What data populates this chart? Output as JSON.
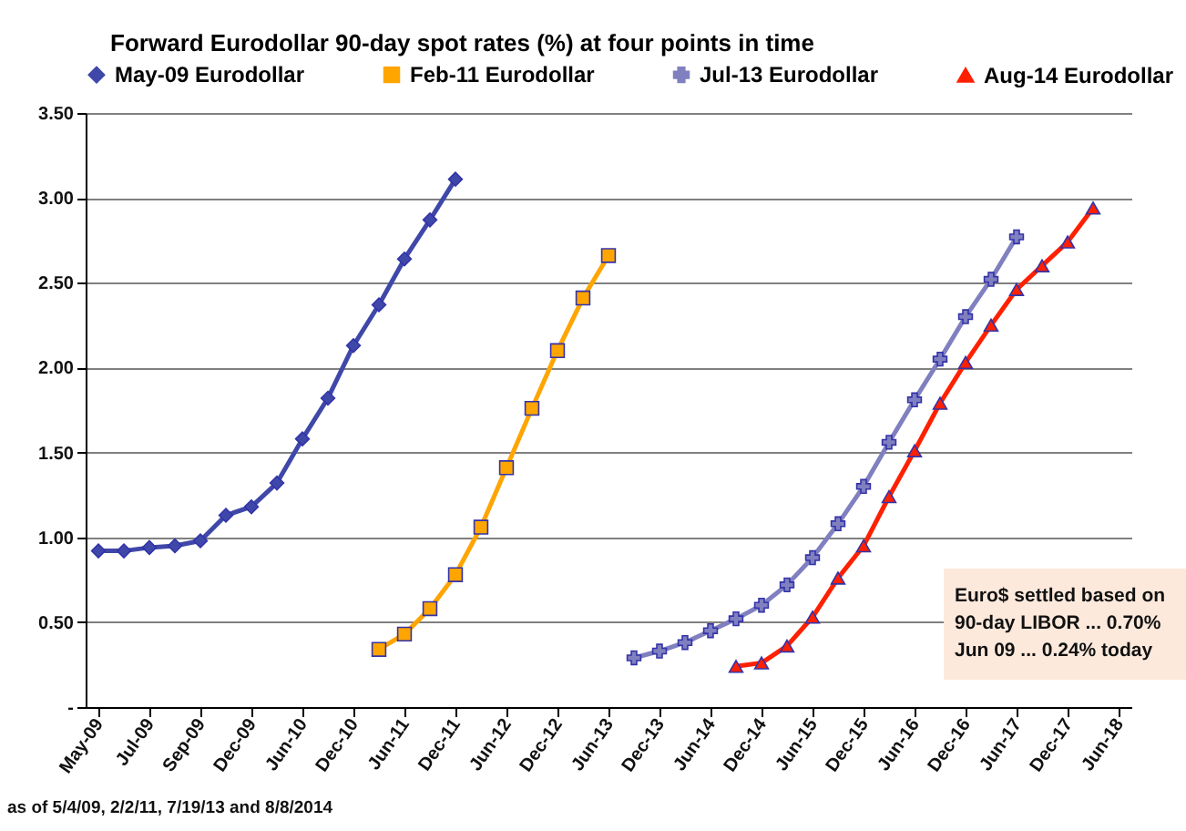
{
  "chart_data": {
    "type": "line",
    "title": "Forward Eurodollar 90-day spot rates (%) at four points in time",
    "categories": [
      "May-09",
      null,
      "Jul-09",
      null,
      "Sep-09",
      null,
      "Dec-09",
      null,
      "Jun-10",
      null,
      "Dec-10",
      null,
      "Jun-11",
      null,
      "Dec-11",
      null,
      "Jun-12",
      null,
      "Dec-12",
      null,
      "Jun-13",
      null,
      "Dec-13",
      null,
      "Jun-14",
      null,
      "Dec-14",
      null,
      "Jun-15",
      null,
      "Dec-15",
      null,
      "Jun-16",
      null,
      "Dec-16",
      null,
      "Jun-17",
      null,
      "Dec-17",
      null,
      "Jun-18"
    ],
    "series": [
      {
        "name": "May-09 Eurodollar",
        "color": "#3f48a8",
        "marker": "diamond",
        "values": [
          0.92,
          0.92,
          0.94,
          0.95,
          0.98,
          1.13,
          1.18,
          1.32,
          1.58,
          1.82,
          2.13,
          2.37,
          2.64,
          2.87,
          3.11,
          null,
          null,
          null,
          null,
          null,
          null,
          null,
          null,
          null,
          null,
          null,
          null,
          null,
          null,
          null,
          null,
          null,
          null,
          null,
          null,
          null,
          null,
          null,
          null,
          null,
          null
        ]
      },
      {
        "name": "Feb-11 Eurodollar",
        "color": "#ffa500",
        "marker": "square",
        "values": [
          null,
          null,
          null,
          null,
          null,
          null,
          null,
          null,
          null,
          null,
          null,
          0.34,
          0.43,
          0.58,
          0.78,
          1.06,
          1.41,
          1.76,
          2.1,
          2.41,
          2.66,
          null,
          null,
          null,
          null,
          null,
          null,
          null,
          null,
          null,
          null,
          null,
          null,
          null,
          null,
          null,
          null,
          null,
          null,
          null,
          null
        ]
      },
      {
        "name": "Jul-13 Eurodollar",
        "color": "#8080c0",
        "marker": "cross",
        "values": [
          null,
          null,
          null,
          null,
          null,
          null,
          null,
          null,
          null,
          null,
          null,
          null,
          null,
          null,
          null,
          null,
          null,
          null,
          null,
          null,
          null,
          0.29,
          0.33,
          0.38,
          0.45,
          0.52,
          0.6,
          0.72,
          0.88,
          1.08,
          1.3,
          1.56,
          1.81,
          2.05,
          2.3,
          2.52,
          2.77,
          null,
          null,
          null,
          null
        ]
      },
      {
        "name": "Aug-14 Eurodollar",
        "color": "#ff2000",
        "marker": "triangle",
        "values": [
          null,
          null,
          null,
          null,
          null,
          null,
          null,
          null,
          null,
          null,
          null,
          null,
          null,
          null,
          null,
          null,
          null,
          null,
          null,
          null,
          null,
          null,
          null,
          null,
          null,
          0.24,
          0.26,
          0.36,
          0.53,
          0.76,
          0.95,
          1.24,
          1.51,
          1.79,
          2.03,
          2.25,
          2.46,
          2.6,
          2.74,
          2.94,
          null
        ]
      }
    ],
    "ylim": [
      0,
      3.5
    ],
    "yticks": [
      {
        "value": 0,
        "label": "-"
      },
      {
        "value": 0.5,
        "label": "0.50"
      },
      {
        "value": 1,
        "label": "1.00"
      },
      {
        "value": 1.5,
        "label": "1.50"
      },
      {
        "value": 2,
        "label": "2.00"
      },
      {
        "value": 2.5,
        "label": "2.50"
      },
      {
        "value": 3,
        "label": "3.00"
      },
      {
        "value": 3.5,
        "label": "3.50"
      }
    ],
    "grid": "y",
    "legend": "top",
    "line_style": "solid",
    "annotations": [
      "Euro$ settled based on\n90-day LIBOR ... 0.70%\nJun 09 ... 0.24% today",
      "as of 5/4/09, 2/2/11, 7/19/13 and 8/8/2014"
    ]
  }
}
